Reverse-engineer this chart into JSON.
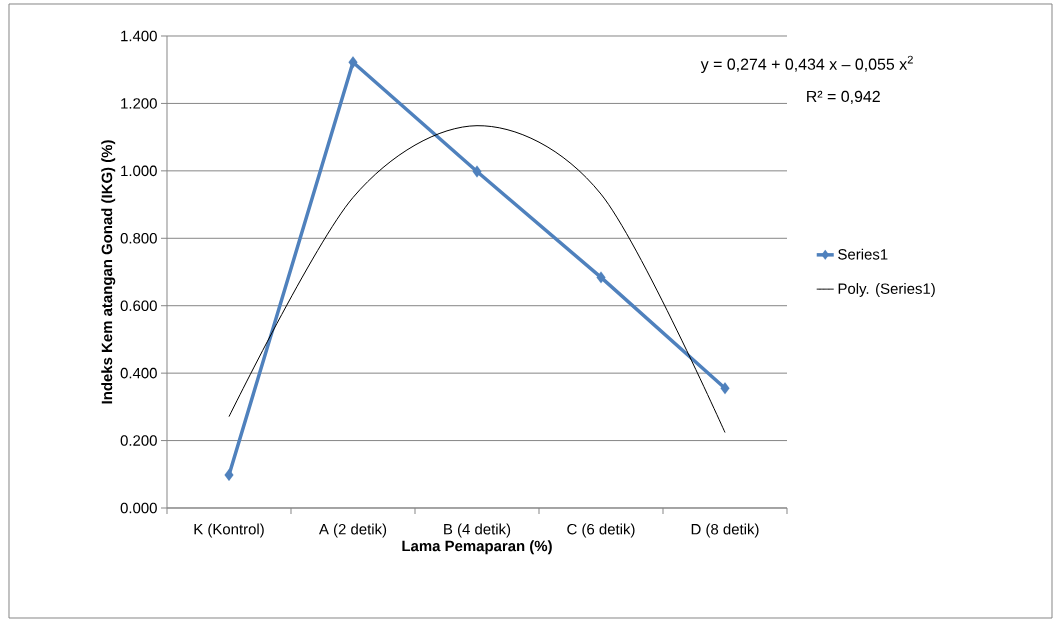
{
  "chart_data": {
    "type": "line",
    "xlabel": "Lama Pemaparan (%)",
    "ylabel": "Indeks Kem atangan Gonad (IKG)  (%)",
    "categories": [
      "K (Kontrol)",
      "A (2 detik)",
      "B (4 detik)",
      "C (6 detik)",
      "D (8 detik)"
    ],
    "series": [
      {
        "name": "Series1",
        "color": "#4f81bd",
        "marker": "diamond",
        "values": [
          0.098,
          1.322,
          0.998,
          0.684,
          0.355
        ]
      },
      {
        "name": "Poly. (Series1)",
        "color": "#000000",
        "marker": "none",
        "values": [
          0.271,
          0.921,
          1.134,
          0.931,
          0.224
        ]
      }
    ],
    "ylim": [
      0,
      1.4
    ],
    "yticks": [
      {
        "value": 0,
        "label": "0.000"
      },
      {
        "value": 0.2,
        "label": "0.200"
      },
      {
        "value": 0.4,
        "label": "0.400"
      },
      {
        "value": 0.6,
        "label": "0.600"
      },
      {
        "value": 0.8,
        "label": "0.800"
      },
      {
        "value": 1.0,
        "label": "1.000"
      },
      {
        "value": 1.2,
        "label": "1.200"
      },
      {
        "value": 1.4,
        "label": "1.400"
      }
    ],
    "grid": "y",
    "legend": "right",
    "annotations": [
      "y = 0,274 + 0,434 x – 0,055 x$^{2}$",
      "R² = 0,942"
    ]
  }
}
